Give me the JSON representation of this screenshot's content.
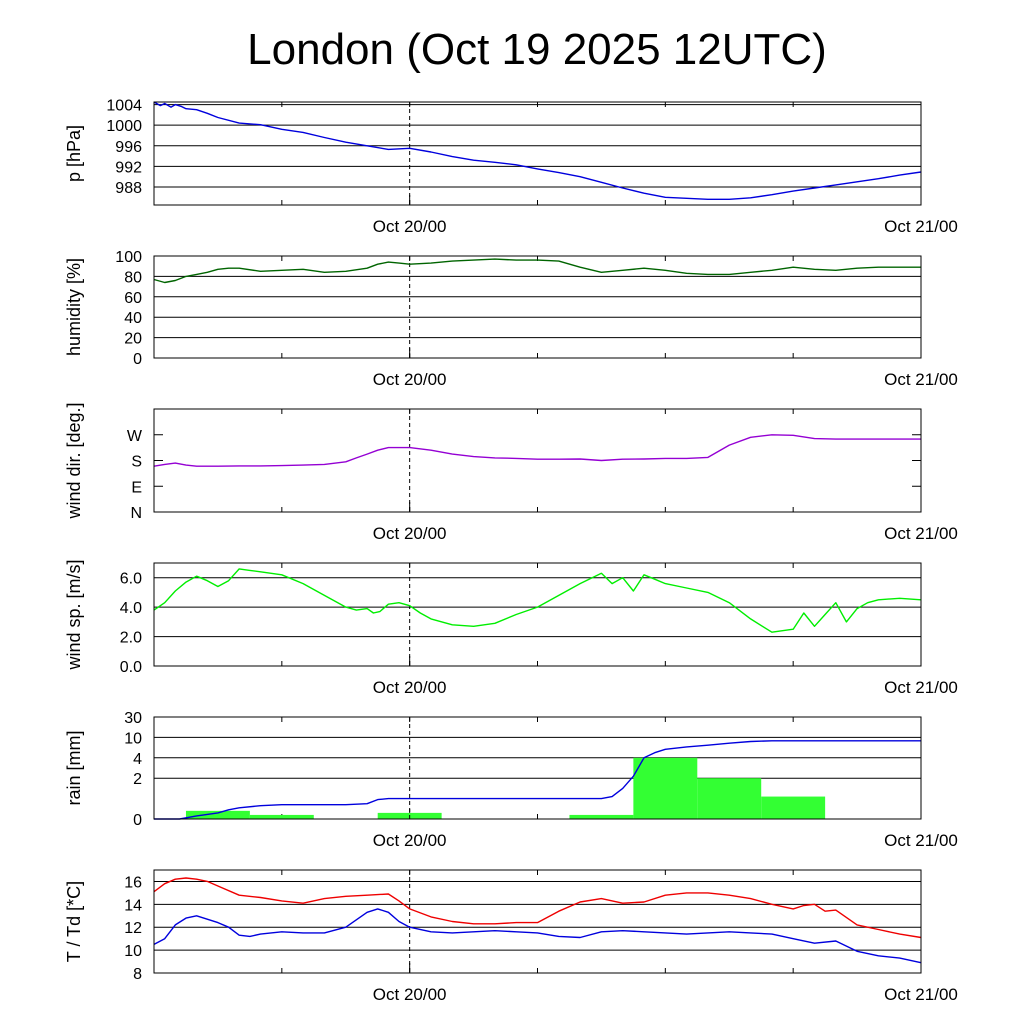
{
  "title": "London (Oct 19 2025 12UTC)",
  "colors": {
    "pressure": "#0000dd",
    "humidity": "#006400",
    "wind_dir": "#9400d3",
    "wind_speed": "#00ee00",
    "rain_bars": "#33ff33",
    "rain_cumulative": "#0000dd",
    "temperature": "#ee0000",
    "dewpoint": "#0000dd"
  },
  "chart_data": [
    {
      "type": "line",
      "ylabel": "p [hPa]",
      "ylim": [
        984.5,
        1004.5
      ],
      "yticks": [
        "1004",
        "1000",
        "996",
        "992",
        "988"
      ],
      "ytick_values": [
        1004,
        1000,
        996,
        992,
        988
      ],
      "xlim": [
        0,
        36
      ],
      "xtick_labels": [
        "Oct 20/00",
        "Oct 21/00"
      ],
      "xtick_values": [
        12,
        36
      ],
      "marker_x": 12,
      "grid": true,
      "series": [
        {
          "color_key": "pressure",
          "x": [
            0,
            0.3,
            0.5,
            0.8,
            1.0,
            1.3,
            1.5,
            2,
            2.5,
            3,
            4,
            5,
            6,
            7,
            8,
            9,
            10,
            11,
            12,
            13,
            14,
            15,
            16,
            17,
            18,
            19,
            20,
            21,
            22,
            23,
            24,
            25,
            26,
            27,
            28,
            29,
            30,
            31,
            32,
            33,
            34,
            35,
            36
          ],
          "values": [
            1004.5,
            1003.8,
            1004.2,
            1003.5,
            1004.0,
            1003.6,
            1003.2,
            1003.0,
            1002.3,
            1001.5,
            1000.4,
            1000.1,
            999.2,
            998.6,
            997.6,
            996.7,
            996.0,
            995.3,
            995.5,
            994.8,
            993.9,
            993.2,
            992.8,
            992.3,
            991.5,
            990.8,
            990.0,
            988.9,
            987.8,
            986.8,
            986.0,
            985.8,
            985.6,
            985.6,
            985.9,
            986.5,
            987.2,
            987.8,
            988.4,
            989.0,
            989.6,
            990.3,
            990.9
          ]
        }
      ]
    },
    {
      "type": "line",
      "ylabel": "humidity [%]",
      "ylim": [
        0,
        100
      ],
      "yticks": [
        "100",
        "80",
        "60",
        "40",
        "20",
        "0"
      ],
      "ytick_values": [
        100,
        80,
        60,
        40,
        20,
        0
      ],
      "xlim": [
        0,
        36
      ],
      "xtick_labels": [
        "Oct 20/00",
        "Oct 21/00"
      ],
      "xtick_values": [
        12,
        36
      ],
      "marker_x": 12,
      "grid": true,
      "series": [
        {
          "color_key": "humidity",
          "x": [
            0,
            0.5,
            1,
            1.5,
            2,
            2.5,
            3,
            3.5,
            4,
            5,
            6,
            7,
            8,
            9,
            10,
            10.5,
            11,
            11.5,
            12,
            13,
            14,
            15,
            16,
            17,
            18,
            19,
            20,
            21,
            22,
            23,
            24,
            25,
            26,
            27,
            28,
            29,
            30,
            31,
            32,
            33,
            34,
            35,
            36
          ],
          "values": [
            77,
            74,
            76,
            80,
            82,
            84,
            87,
            88,
            88,
            85,
            86,
            87,
            84,
            85,
            88,
            92,
            94,
            93,
            92,
            93,
            95,
            96,
            97,
            96,
            96,
            95,
            89,
            84,
            86,
            88,
            86,
            83,
            82,
            82,
            84,
            86,
            89,
            87,
            86,
            88,
            89,
            89,
            89
          ]
        }
      ]
    },
    {
      "type": "line",
      "ylabel": "wind dir. [deg.]",
      "ylim": [
        0,
        400
      ],
      "yticks": [
        "W",
        "S",
        "E",
        "N"
      ],
      "ytick_values": [
        300,
        200,
        100,
        0
      ],
      "xlim": [
        0,
        36
      ],
      "xtick_labels": [
        "Oct 20/00",
        "Oct 21/00"
      ],
      "xtick_values": [
        12,
        36
      ],
      "marker_x": 12,
      "grid": false,
      "series": [
        {
          "color_key": "wind_dir",
          "x": [
            0,
            0.5,
            1,
            1.5,
            2,
            3,
            4,
            5,
            6,
            7,
            8,
            9,
            9.5,
            10,
            10.5,
            11,
            11.5,
            12,
            13,
            14,
            15,
            16,
            17,
            18,
            19,
            20,
            21,
            22,
            23,
            24,
            25,
            26,
            27,
            28,
            29,
            30,
            31,
            32,
            33,
            34,
            35,
            36
          ],
          "values": [
            178,
            185,
            190,
            182,
            178,
            178,
            179,
            179,
            180,
            182,
            185,
            195,
            210,
            225,
            240,
            250,
            250,
            250,
            240,
            225,
            215,
            210,
            208,
            205,
            205,
            206,
            200,
            205,
            206,
            208,
            208,
            212,
            260,
            290,
            300,
            298,
            285,
            283,
            283,
            283,
            283,
            283
          ]
        }
      ]
    },
    {
      "type": "line",
      "ylabel": "wind sp. [m/s]",
      "ylim": [
        0,
        7
      ],
      "yticks": [
        "6.0",
        "4.0",
        "2.0",
        "0.0"
      ],
      "ytick_values": [
        6,
        4,
        2,
        0
      ],
      "xlim": [
        0,
        36
      ],
      "xtick_labels": [
        "Oct 20/00",
        "Oct 21/00"
      ],
      "xtick_values": [
        12,
        36
      ],
      "marker_x": 12,
      "grid": true,
      "series": [
        {
          "color_key": "wind_speed",
          "x": [
            0,
            0.5,
            1,
            1.5,
            2,
            2.5,
            3,
            3.5,
            4,
            4.5,
            5,
            6,
            7,
            8,
            9,
            9.5,
            10,
            10.3,
            10.6,
            11,
            11.5,
            12,
            12.5,
            13,
            14,
            15,
            16,
            17,
            18,
            19,
            20,
            21,
            21.5,
            22,
            22.5,
            23,
            23.5,
            24,
            25,
            26,
            27,
            28,
            29,
            30,
            30.5,
            31,
            31.5,
            32,
            32.5,
            33,
            33.5,
            34,
            35,
            36
          ],
          "values": [
            3.8,
            4.3,
            5.1,
            5.7,
            6.1,
            5.8,
            5.4,
            5.8,
            6.6,
            6.5,
            6.4,
            6.2,
            5.6,
            4.8,
            4.0,
            3.8,
            3.9,
            3.6,
            3.7,
            4.2,
            4.3,
            4.1,
            3.6,
            3.2,
            2.8,
            2.7,
            2.9,
            3.5,
            4.0,
            4.8,
            5.6,
            6.3,
            5.6,
            6.0,
            5.1,
            6.2,
            5.9,
            5.6,
            5.3,
            5.0,
            4.3,
            3.2,
            2.3,
            2.5,
            3.6,
            2.7,
            3.5,
            4.3,
            3.0,
            3.9,
            4.3,
            4.5,
            4.6,
            4.5
          ]
        }
      ]
    },
    {
      "type": "bar+line",
      "ylabel": "rain [mm]",
      "scale": "piecewise",
      "scale_points": [
        [
          0,
          0
        ],
        [
          1,
          0.25
        ],
        [
          2,
          0.5
        ],
        [
          4,
          0.75
        ],
        [
          10,
          1.0
        ],
        [
          30,
          1.25
        ]
      ],
      "yticks": [
        "30",
        "10",
        "4",
        "2",
        "0"
      ],
      "ytick_values": [
        30,
        10,
        4,
        2,
        0
      ],
      "xlim": [
        0,
        36
      ],
      "xtick_labels": [
        "Oct 20/00",
        "Oct 21/00"
      ],
      "xtick_values": [
        12,
        36
      ],
      "marker_x": 12,
      "grid": true,
      "bars": [
        {
          "x0": 1.5,
          "x1": 4.5,
          "value": 0.4
        },
        {
          "x0": 4.5,
          "x1": 7.5,
          "value": 0.2
        },
        {
          "x0": 10.5,
          "x1": 13.5,
          "value": 0.3
        },
        {
          "x0": 19.5,
          "x1": 22.5,
          "value": 0.2
        },
        {
          "x0": 22.5,
          "x1": 25.5,
          "value": 4.0
        },
        {
          "x0": 25.5,
          "x1": 28.5,
          "value": 2.0
        },
        {
          "x0": 28.5,
          "x1": 31.5,
          "value": 1.1
        }
      ],
      "series": [
        {
          "color_key": "rain_cumulative",
          "x": [
            0,
            1.2,
            2,
            3,
            3.5,
            4,
            5,
            6,
            7,
            8,
            9,
            10,
            10.5,
            11,
            12,
            13,
            14,
            16,
            18,
            20,
            21,
            21.5,
            22,
            22.5,
            23,
            23.5,
            24,
            25,
            26,
            27,
            28,
            29,
            30,
            31,
            32,
            33,
            34,
            35,
            36
          ],
          "values": [
            0,
            0,
            0.15,
            0.3,
            0.45,
            0.55,
            0.65,
            0.7,
            0.7,
            0.7,
            0.7,
            0.75,
            0.95,
            1.0,
            1.0,
            1.0,
            1.0,
            1.0,
            1.0,
            1.0,
            1.0,
            1.1,
            1.5,
            2.2,
            4.0,
            5.5,
            6.5,
            7.2,
            7.7,
            8.3,
            8.8,
            9.0,
            9.0,
            9.0,
            9.0,
            9.0,
            9.0,
            9.0,
            9.0
          ]
        }
      ]
    },
    {
      "type": "line",
      "ylabel": "T / Td [*C]",
      "ylim": [
        8,
        17
      ],
      "yticks": [
        "16",
        "14",
        "12",
        "10",
        "8"
      ],
      "ytick_values": [
        16,
        14,
        12,
        10,
        8
      ],
      "xlim": [
        0,
        36
      ],
      "xtick_labels": [
        "Oct 20/00",
        "Oct 21/00"
      ],
      "xtick_values": [
        12,
        36
      ],
      "marker_x": 12,
      "grid": true,
      "series": [
        {
          "color_key": "temperature",
          "x": [
            0,
            0.5,
            1,
            1.5,
            2,
            2.5,
            3,
            4,
            5,
            6,
            7,
            8,
            9,
            10,
            11,
            11.5,
            12,
            13,
            14,
            15,
            16,
            17,
            18,
            19,
            20,
            21,
            22,
            23,
            24,
            25,
            26,
            27,
            28,
            29,
            30,
            30.5,
            31,
            31.5,
            32,
            33,
            34,
            35,
            36
          ],
          "values": [
            15.1,
            15.8,
            16.2,
            16.3,
            16.2,
            16.0,
            15.6,
            14.8,
            14.6,
            14.3,
            14.1,
            14.5,
            14.7,
            14.8,
            14.9,
            14.3,
            13.6,
            12.9,
            12.5,
            12.3,
            12.3,
            12.4,
            12.4,
            13.4,
            14.2,
            14.5,
            14.1,
            14.2,
            14.8,
            15.0,
            15.0,
            14.8,
            14.5,
            14.0,
            13.6,
            13.9,
            14.0,
            13.4,
            13.5,
            12.2,
            11.8,
            11.4,
            11.1
          ]
        },
        {
          "color_key": "dewpoint",
          "x": [
            0,
            0.5,
            1,
            1.5,
            2,
            3,
            3.5,
            4,
            4.5,
            5,
            6,
            7,
            8,
            9,
            10,
            10.5,
            11,
            11.5,
            12,
            13,
            14,
            15,
            16,
            17,
            18,
            19,
            20,
            21,
            22,
            23,
            24,
            25,
            26,
            27,
            28,
            29,
            30,
            31,
            32,
            33,
            34,
            35,
            36
          ],
          "values": [
            10.5,
            11.0,
            12.2,
            12.8,
            13.0,
            12.4,
            12.0,
            11.3,
            11.2,
            11.4,
            11.6,
            11.5,
            11.5,
            12.0,
            13.3,
            13.6,
            13.3,
            12.5,
            12.0,
            11.6,
            11.5,
            11.6,
            11.7,
            11.6,
            11.5,
            11.2,
            11.1,
            11.6,
            11.7,
            11.6,
            11.5,
            11.4,
            11.5,
            11.6,
            11.5,
            11.4,
            11.0,
            10.6,
            10.8,
            9.9,
            9.5,
            9.3,
            8.9
          ]
        }
      ]
    }
  ]
}
